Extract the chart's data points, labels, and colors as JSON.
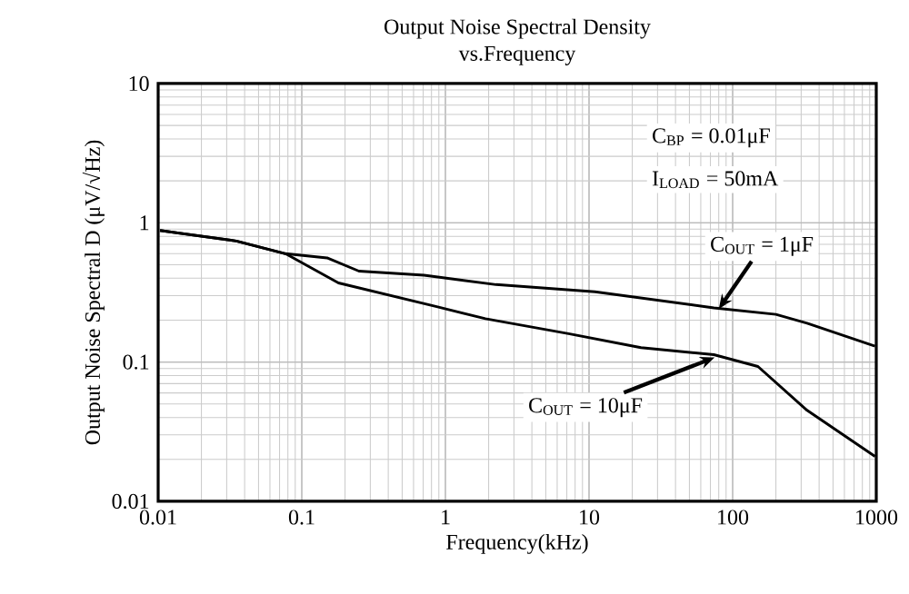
{
  "chart_data": {
    "type": "line",
    "title": "Output Noise Spectral Density",
    "subtitle": "vs.Frequency",
    "xlabel": "Frequency(kHz)",
    "ylabel": "Output Noise Spectral D (μV/√Hz)",
    "log": "xy",
    "grid": true,
    "marker": "none",
    "line_style": "solid",
    "xlim": [
      0.01,
      1000
    ],
    "ylim": [
      0.01,
      10
    ],
    "xticks": [
      0.01,
      0.1,
      1,
      10,
      100,
      1000
    ],
    "yticks": [
      0.01,
      0.1,
      1,
      10
    ],
    "series": [
      {
        "color": "#000000",
        "x": [
          0.0103,
          0.035,
          0.077,
          0.15,
          0.25,
          0.71,
          2.25,
          11,
          74,
          200,
          330,
          980
        ],
        "values": [
          0.88,
          0.74,
          0.6,
          0.56,
          0.45,
          0.42,
          0.36,
          0.32,
          0.245,
          0.22,
          0.19,
          0.13
        ]
      },
      {
        "color": "#000000",
        "x": [
          0.0103,
          0.035,
          0.077,
          0.18,
          0.87,
          1.9,
          7.2,
          23,
          74,
          150,
          330,
          980
        ],
        "values": [
          0.88,
          0.74,
          0.6,
          0.37,
          0.25,
          0.205,
          0.16,
          0.127,
          0.113,
          0.093,
          0.045,
          0.021
        ]
      }
    ],
    "annotations": [
      "C$_{BP}$ = 0.01μF",
      "I$_{LOAD}$ = 50mA",
      {
        "text": "C$_{OUT}$ = 1μF",
        "x": 80,
        "y": 0.24
      },
      {
        "text": "C$_{OUT}$ = 10μF",
        "x": 75,
        "y": 0.108
      }
    ]
  }
}
